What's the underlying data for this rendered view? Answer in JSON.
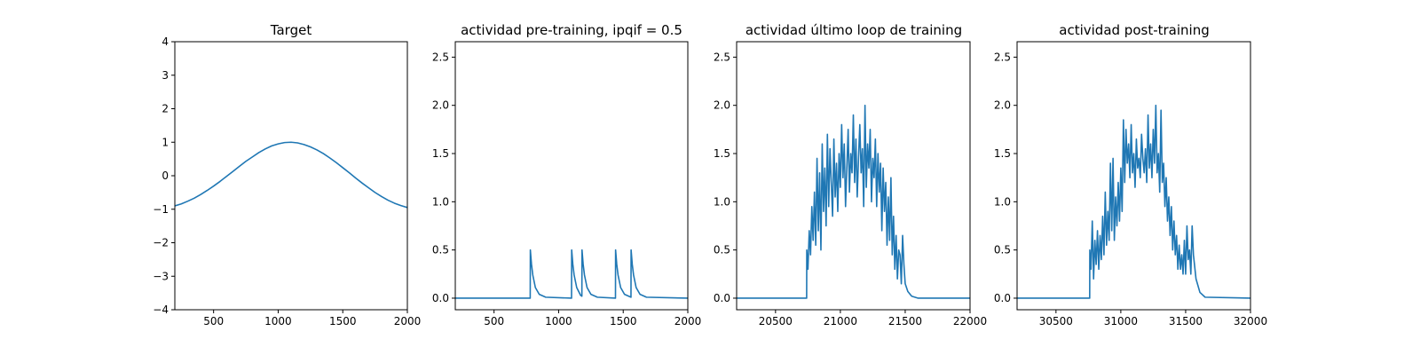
{
  "chart_data": [
    {
      "type": "line",
      "title": "Target",
      "xlabel": "",
      "ylabel": "",
      "xlim": [
        200,
        2000
      ],
      "ylim": [
        -4,
        4
      ],
      "xticks": [
        500,
        1000,
        1500,
        2000
      ],
      "yticks": [
        -4,
        -3,
        -2,
        -1,
        0,
        1,
        2,
        3,
        4
      ],
      "xtick_labels": [
        "500",
        "1000",
        "1500",
        "2000"
      ],
      "ytick_labels": [
        "−4",
        "−3",
        "−2",
        "−1",
        "0",
        "1",
        "2",
        "3",
        "4"
      ],
      "color": "#1f77b4",
      "grid": false,
      "series": [
        {
          "x": [
            200,
            250,
            300,
            350,
            400,
            450,
            500,
            550,
            600,
            650,
            700,
            750,
            800,
            850,
            900,
            950,
            1000,
            1050,
            1100,
            1150,
            1200,
            1250,
            1300,
            1350,
            1400,
            1450,
            1500,
            1550,
            1600,
            1650,
            1700,
            1750,
            1800,
            1850,
            1900,
            1950,
            2000
          ],
          "y": [
            -0.9,
            -0.84,
            -0.76,
            -0.67,
            -0.56,
            -0.44,
            -0.31,
            -0.17,
            -0.02,
            0.13,
            0.28,
            0.43,
            0.56,
            0.69,
            0.8,
            0.89,
            0.95,
            0.99,
            1.0,
            0.98,
            0.93,
            0.86,
            0.77,
            0.66,
            0.53,
            0.39,
            0.24,
            0.09,
            -0.07,
            -0.22,
            -0.36,
            -0.5,
            -0.62,
            -0.73,
            -0.82,
            -0.89,
            -0.95
          ]
        }
      ]
    },
    {
      "type": "line",
      "title": "actividad pre-training, ipqif = 0.5",
      "xlabel": "",
      "ylabel": "",
      "xlim": [
        200,
        2000
      ],
      "ylim": [
        -0.12,
        2.66
      ],
      "xticks": [
        500,
        1000,
        1500,
        2000
      ],
      "yticks": [
        0.0,
        0.5,
        1.0,
        1.5,
        2.0,
        2.5
      ],
      "xtick_labels": [
        "500",
        "1000",
        "1500",
        "2000"
      ],
      "ytick_labels": [
        "0.0",
        "0.5",
        "1.0",
        "1.5",
        "2.0",
        "2.5"
      ],
      "color": "#1f77b4",
      "grid": false,
      "series": [
        {
          "x": [
            200,
            780,
            781,
            790,
            800,
            820,
            850,
            900,
            1100,
            1101,
            1110,
            1120,
            1140,
            1170,
            1180,
            1181,
            1190,
            1200,
            1220,
            1250,
            1300,
            1440,
            1441,
            1450,
            1460,
            1480,
            1510,
            1560,
            1561,
            1570,
            1580,
            1600,
            1630,
            1680,
            2000
          ],
          "y": [
            0.0,
            0.0,
            0.5,
            0.35,
            0.24,
            0.11,
            0.04,
            0.01,
            0.0,
            0.5,
            0.35,
            0.24,
            0.11,
            0.03,
            0.02,
            0.5,
            0.35,
            0.24,
            0.11,
            0.04,
            0.01,
            0.0,
            0.5,
            0.35,
            0.24,
            0.11,
            0.04,
            0.01,
            0.5,
            0.35,
            0.24,
            0.11,
            0.04,
            0.01,
            0.0
          ]
        }
      ]
    },
    {
      "type": "line",
      "title": "actividad último loop de training",
      "xlabel": "",
      "ylabel": "",
      "xlim": [
        20200,
        22000
      ],
      "ylim": [
        -0.12,
        2.66
      ],
      "xticks": [
        20500,
        21000,
        21500,
        22000
      ],
      "yticks": [
        0.0,
        0.5,
        1.0,
        1.5,
        2.0,
        2.5
      ],
      "xtick_labels": [
        "20500",
        "21000",
        "21500",
        "22000"
      ],
      "ytick_labels": [
        "0.0",
        "0.5",
        "1.0",
        "1.5",
        "2.0",
        "2.5"
      ],
      "color": "#1f77b4",
      "grid": false,
      "series": [
        {
          "x": [
            20200,
            20740,
            20741,
            20750,
            20760,
            20770,
            20780,
            20790,
            20800,
            20810,
            20820,
            20830,
            20840,
            20850,
            20860,
            20870,
            20880,
            20890,
            20900,
            20910,
            20920,
            20930,
            20940,
            20950,
            20960,
            20970,
            20980,
            20990,
            21000,
            21010,
            21020,
            21030,
            21040,
            21050,
            21060,
            21070,
            21080,
            21090,
            21100,
            21110,
            21120,
            21130,
            21140,
            21150,
            21160,
            21170,
            21180,
            21190,
            21200,
            21210,
            21220,
            21230,
            21240,
            21250,
            21260,
            21270,
            21280,
            21290,
            21300,
            21310,
            21320,
            21330,
            21340,
            21350,
            21360,
            21370,
            21380,
            21390,
            21400,
            21410,
            21420,
            21430,
            21440,
            21450,
            21460,
            21470,
            21480,
            21490,
            21500,
            21520,
            21550,
            21600,
            22000
          ],
          "y": [
            0.0,
            0.0,
            0.5,
            0.3,
            0.7,
            0.45,
            0.95,
            0.6,
            1.1,
            0.55,
            1.45,
            0.7,
            1.3,
            0.5,
            1.6,
            0.9,
            1.35,
            0.75,
            1.7,
            0.95,
            1.55,
            1.2,
            0.85,
            1.65,
            1.05,
            1.4,
            0.9,
            1.5,
            1.15,
            1.8,
            1.25,
            1.6,
            0.95,
            1.35,
            1.75,
            1.1,
            1.5,
            1.3,
            1.9,
            1.2,
            1.65,
            1.05,
            1.45,
            1.8,
            1.3,
            1.55,
            0.95,
            2.0,
            1.15,
            1.6,
            1.35,
            1.75,
            1.0,
            1.45,
            1.25,
            1.65,
            0.95,
            1.5,
            1.1,
            1.4,
            0.7,
            1.35,
            0.9,
            1.2,
            0.55,
            1.05,
            0.6,
            1.25,
            0.45,
            0.85,
            0.3,
            0.65,
            0.2,
            0.5,
            0.45,
            0.15,
            0.65,
            0.35,
            0.15,
            0.07,
            0.02,
            0.0,
            0.0
          ]
        }
      ]
    },
    {
      "type": "line",
      "title": "actividad post-training",
      "xlabel": "",
      "ylabel": "",
      "xlim": [
        30200,
        32000
      ],
      "ylim": [
        -0.12,
        2.66
      ],
      "xticks": [
        30500,
        31000,
        31500,
        32000
      ],
      "yticks": [
        0.0,
        0.5,
        1.0,
        1.5,
        2.0,
        2.5
      ],
      "xtick_labels": [
        "30500",
        "31000",
        "31500",
        "32000"
      ],
      "ytick_labels": [
        "0.0",
        "0.5",
        "1.0",
        "1.5",
        "2.0",
        "2.5"
      ],
      "color": "#1f77b4",
      "grid": false,
      "series": [
        {
          "x": [
            30200,
            30760,
            30761,
            30770,
            30780,
            30790,
            30800,
            30810,
            30820,
            30830,
            30840,
            30850,
            30860,
            30870,
            30880,
            30890,
            30900,
            30910,
            30920,
            30930,
            30940,
            30950,
            30960,
            30970,
            30980,
            30990,
            31000,
            31010,
            31020,
            31030,
            31040,
            31050,
            31060,
            31070,
            31080,
            31090,
            31100,
            31110,
            31120,
            31130,
            31140,
            31150,
            31160,
            31170,
            31180,
            31190,
            31200,
            31210,
            31220,
            31230,
            31240,
            31250,
            31260,
            31270,
            31280,
            31290,
            31300,
            31310,
            31320,
            31330,
            31340,
            31350,
            31360,
            31370,
            31380,
            31390,
            31400,
            31410,
            31420,
            31430,
            31440,
            31450,
            31460,
            31470,
            31480,
            31490,
            31500,
            31510,
            31520,
            31530,
            31540,
            31550,
            31560,
            31580,
            31610,
            31650,
            32000
          ],
          "y": [
            0.0,
            0.0,
            0.5,
            0.3,
            0.8,
            0.2,
            0.6,
            0.35,
            0.7,
            0.3,
            0.65,
            0.4,
            0.85,
            0.45,
            1.1,
            0.55,
            0.9,
            0.6,
            1.4,
            0.7,
            1.45,
            0.6,
            1.05,
            0.75,
            1.2,
            0.8,
            1.35,
            0.9,
            1.85,
            1.2,
            1.75,
            1.4,
            1.6,
            1.25,
            1.8,
            1.3,
            1.5,
            1.15,
            1.65,
            1.35,
            1.45,
            1.25,
            1.7,
            1.45,
            1.3,
            1.55,
            1.2,
            1.9,
            1.35,
            1.6,
            1.25,
            1.75,
            1.4,
            2.0,
            1.3,
            1.5,
            1.1,
            1.95,
            1.2,
            1.4,
            0.95,
            1.25,
            0.8,
            1.05,
            0.65,
            0.95,
            0.5,
            0.8,
            0.45,
            0.65,
            0.3,
            0.55,
            0.3,
            0.45,
            0.25,
            0.6,
            0.25,
            0.75,
            0.4,
            0.5,
            0.25,
            0.75,
            0.45,
            0.2,
            0.06,
            0.01,
            0.0
          ]
        }
      ]
    }
  ]
}
